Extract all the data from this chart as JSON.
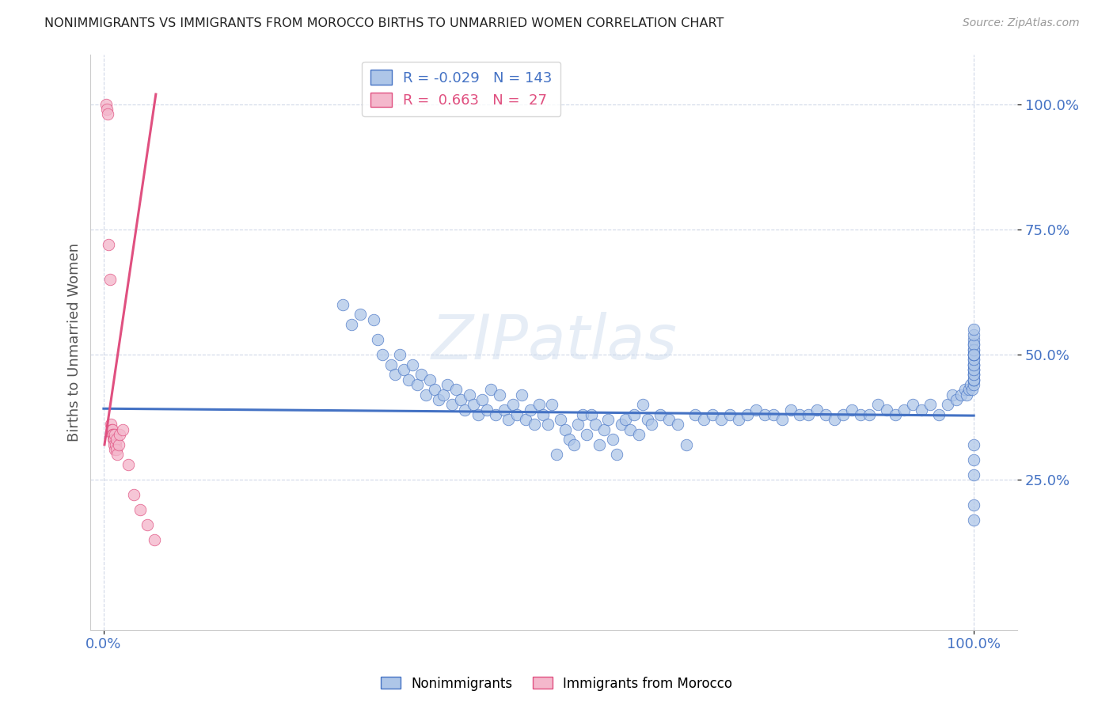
{
  "title": "NONIMMIGRANTS VS IMMIGRANTS FROM MOROCCO BIRTHS TO UNMARRIED WOMEN CORRELATION CHART",
  "source": "Source: ZipAtlas.com",
  "ylabel": "Births to Unmarried Women",
  "blue_color": "#aec6e8",
  "pink_color": "#f4b8cc",
  "blue_line_color": "#4472c4",
  "pink_line_color": "#e05080",
  "nonimmigrant_R": -0.029,
  "nonimmigrant_N": 143,
  "immigrant_R": 0.663,
  "immigrant_N": 27,
  "blue_x": [
    0.275,
    0.285,
    0.295,
    0.31,
    0.315,
    0.32,
    0.33,
    0.335,
    0.34,
    0.345,
    0.35,
    0.355,
    0.36,
    0.365,
    0.37,
    0.375,
    0.38,
    0.385,
    0.39,
    0.395,
    0.4,
    0.405,
    0.41,
    0.415,
    0.42,
    0.425,
    0.43,
    0.435,
    0.44,
    0.445,
    0.45,
    0.455,
    0.46,
    0.465,
    0.47,
    0.475,
    0.48,
    0.485,
    0.49,
    0.495,
    0.5,
    0.505,
    0.51,
    0.515,
    0.52,
    0.525,
    0.53,
    0.535,
    0.54,
    0.545,
    0.55,
    0.555,
    0.56,
    0.565,
    0.57,
    0.575,
    0.58,
    0.585,
    0.59,
    0.595,
    0.6,
    0.605,
    0.61,
    0.615,
    0.62,
    0.625,
    0.63,
    0.64,
    0.65,
    0.66,
    0.67,
    0.68,
    0.69,
    0.7,
    0.71,
    0.72,
    0.73,
    0.74,
    0.75,
    0.76,
    0.77,
    0.78,
    0.79,
    0.8,
    0.81,
    0.82,
    0.83,
    0.84,
    0.85,
    0.86,
    0.87,
    0.88,
    0.89,
    0.9,
    0.91,
    0.92,
    0.93,
    0.94,
    0.95,
    0.96,
    0.97,
    0.975,
    0.98,
    0.985,
    0.99,
    0.992,
    0.994,
    0.996,
    0.998,
    1.0,
    1.0,
    1.0,
    1.0,
    1.0,
    1.0,
    1.0,
    1.0,
    1.0,
    1.0,
    1.0,
    1.0,
    1.0,
    1.0,
    1.0,
    1.0,
    1.0,
    1.0,
    1.0,
    1.0,
    1.0,
    1.0,
    1.0,
    1.0,
    1.0,
    1.0,
    1.0,
    1.0,
    1.0,
    1.0,
    1.0
  ],
  "blue_y": [
    0.6,
    0.56,
    0.58,
    0.57,
    0.53,
    0.5,
    0.48,
    0.46,
    0.5,
    0.47,
    0.45,
    0.48,
    0.44,
    0.46,
    0.42,
    0.45,
    0.43,
    0.41,
    0.42,
    0.44,
    0.4,
    0.43,
    0.41,
    0.39,
    0.42,
    0.4,
    0.38,
    0.41,
    0.39,
    0.43,
    0.38,
    0.42,
    0.39,
    0.37,
    0.4,
    0.38,
    0.42,
    0.37,
    0.39,
    0.36,
    0.4,
    0.38,
    0.36,
    0.4,
    0.3,
    0.37,
    0.35,
    0.33,
    0.32,
    0.36,
    0.38,
    0.34,
    0.38,
    0.36,
    0.32,
    0.35,
    0.37,
    0.33,
    0.3,
    0.36,
    0.37,
    0.35,
    0.38,
    0.34,
    0.4,
    0.37,
    0.36,
    0.38,
    0.37,
    0.36,
    0.32,
    0.38,
    0.37,
    0.38,
    0.37,
    0.38,
    0.37,
    0.38,
    0.39,
    0.38,
    0.38,
    0.37,
    0.39,
    0.38,
    0.38,
    0.39,
    0.38,
    0.37,
    0.38,
    0.39,
    0.38,
    0.38,
    0.4,
    0.39,
    0.38,
    0.39,
    0.4,
    0.39,
    0.4,
    0.38,
    0.4,
    0.42,
    0.41,
    0.42,
    0.43,
    0.42,
    0.43,
    0.44,
    0.43,
    0.44,
    0.45,
    0.46,
    0.47,
    0.45,
    0.46,
    0.47,
    0.48,
    0.45,
    0.46,
    0.48,
    0.49,
    0.47,
    0.48,
    0.5,
    0.49,
    0.5,
    0.51,
    0.5,
    0.52,
    0.53,
    0.51,
    0.52,
    0.54,
    0.55,
    0.5,
    0.26,
    0.29,
    0.32,
    0.2,
    0.17
  ],
  "pink_x": [
    0.003,
    0.004,
    0.005,
    0.006,
    0.007,
    0.008,
    0.009,
    0.01,
    0.01,
    0.011,
    0.011,
    0.012,
    0.012,
    0.013,
    0.013,
    0.014,
    0.015,
    0.015,
    0.016,
    0.017,
    0.018,
    0.022,
    0.028,
    0.035,
    0.042,
    0.05,
    0.058
  ],
  "pink_y": [
    1.0,
    0.99,
    0.98,
    0.72,
    0.65,
    0.36,
    0.35,
    0.35,
    0.34,
    0.34,
    0.33,
    0.33,
    0.32,
    0.34,
    0.31,
    0.32,
    0.33,
    0.31,
    0.3,
    0.32,
    0.34,
    0.35,
    0.28,
    0.22,
    0.19,
    0.16,
    0.13
  ],
  "blue_line_x": [
    0.0,
    1.0
  ],
  "blue_line_y": [
    0.392,
    0.378
  ],
  "pink_line_x": [
    0.001,
    0.06
  ],
  "pink_line_y": [
    0.32,
    1.02
  ],
  "xlim": [
    -0.015,
    1.05
  ],
  "ylim": [
    -0.05,
    1.1
  ],
  "yticks": [
    0.25,
    0.5,
    0.75,
    1.0
  ],
  "ytick_labels": [
    "25.0%",
    "50.0%",
    "75.0%",
    "100.0%"
  ],
  "xticks": [
    0.0,
    1.0
  ],
  "xtick_labels": [
    "0.0%",
    "100.0%"
  ]
}
